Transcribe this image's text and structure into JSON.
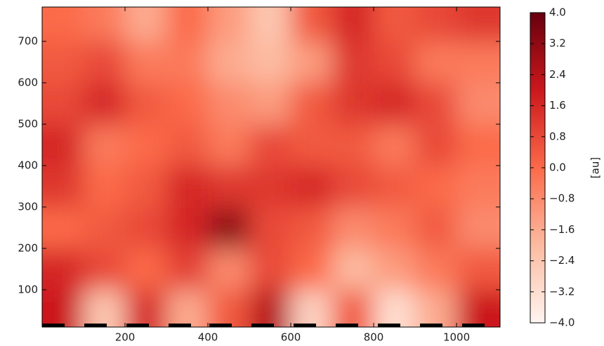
{
  "chart_data": {
    "type": "heatmap",
    "x": [
      0,
      100,
      200,
      300,
      400,
      500,
      600,
      700,
      800,
      900,
      1000,
      1100
    ],
    "y": [
      10,
      100,
      200,
      300,
      400,
      500,
      600,
      700,
      780
    ],
    "z": [
      [
        2.0,
        -2.4,
        1.6,
        -1.6,
        0.4,
        2.4,
        -2.8,
        0.4,
        -3.2,
        -1.6,
        2.0
      ],
      [
        1.6,
        0.8,
        0.0,
        1.0,
        -0.8,
        0.8,
        0.0,
        -2.0,
        -1.2,
        -0.4,
        0.4
      ],
      [
        0.0,
        0.4,
        0.8,
        1.6,
        3.2,
        0.8,
        0.4,
        -0.8,
        -0.4,
        0.4,
        -0.8
      ],
      [
        1.2,
        0.0,
        0.4,
        1.6,
        1.2,
        1.2,
        1.6,
        0.8,
        0.4,
        0.0,
        -0.4
      ],
      [
        1.6,
        -0.4,
        0.0,
        0.4,
        -0.4,
        0.8,
        0.4,
        0.4,
        -0.4,
        0.8,
        0.0
      ],
      [
        0.8,
        1.6,
        0.4,
        0.0,
        -0.8,
        -1.2,
        0.4,
        1.2,
        1.6,
        0.8,
        -0.8
      ],
      [
        0.4,
        0.8,
        -0.4,
        -0.4,
        -1.6,
        -2.0,
        -1.2,
        1.2,
        0.8,
        -0.4,
        -0.4
      ],
      [
        0.0,
        -0.4,
        -1.6,
        0.0,
        -1.2,
        -2.4,
        0.4,
        1.6,
        0.4,
        0.8,
        1.2
      ]
    ],
    "xlim": [
      0,
      1105
    ],
    "ylim": [
      10,
      783
    ],
    "xticks": [
      200,
      400,
      600,
      800,
      1000
    ],
    "yticks": [
      100,
      200,
      300,
      400,
      500,
      600,
      700
    ],
    "colorbar_label": "[au]",
    "zlim": [
      -4,
      4
    ],
    "zticks": [
      {
        "value": -4,
        "label": "−4.0"
      },
      {
        "value": -3.2,
        "label": "−3.2"
      },
      {
        "value": -2.4,
        "label": "−2.4"
      },
      {
        "value": -1.6,
        "label": "−1.6"
      },
      {
        "value": -0.8,
        "label": "−0.8"
      },
      {
        "value": 0,
        "label": "0.0"
      },
      {
        "value": 0.8,
        "label": "0.8"
      },
      {
        "value": 1.6,
        "label": "1.6"
      },
      {
        "value": 2.4,
        "label": "2.4"
      },
      {
        "value": 3.2,
        "label": "3.2"
      },
      {
        "value": 4,
        "label": "4.0"
      }
    ],
    "colors": [
      "#fff5f0",
      "#fcbba1",
      "#fb6a4a",
      "#cb181d",
      "#67000d"
    ]
  }
}
